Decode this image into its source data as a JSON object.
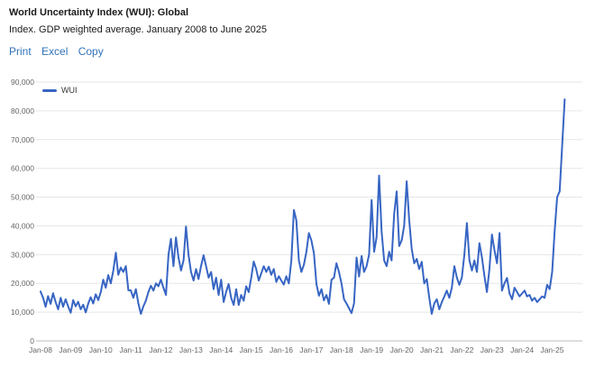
{
  "header": {
    "title": "World Uncertainty Index (WUI): Global",
    "subtitle": "Index. GDP weighted average. January 2008 to June 2025"
  },
  "toolbar": {
    "print_label": "Print",
    "excel_label": "Excel",
    "copy_label": "Copy"
  },
  "colors": {
    "line": "#3765c3",
    "link": "#3273b8",
    "axis_label": "#666666",
    "gridline": "#e6e6e6",
    "zero_line": "#bbbbbb"
  },
  "chart_data": {
    "type": "line",
    "title": "World Uncertainty Index (WUI): Global",
    "xlabel": "",
    "ylabel": "",
    "ylim": [
      0,
      90000
    ],
    "grid": true,
    "x_frequency": "monthly",
    "x_start": "Jan-2008",
    "x_end": "Jun-2025",
    "x_tick_labels": [
      "Jan-08",
      "Jan-09",
      "Jan-10",
      "Jan-11",
      "Jan-12",
      "Jan-13",
      "Jan-14",
      "Jan-15",
      "Jan-16",
      "Jan-17",
      "Jan-18",
      "Jan-19",
      "Jan-20",
      "Jan-21",
      "Jan-22",
      "Jan-23",
      "Jan-24",
      "Jan-25"
    ],
    "y_tick_labels": [
      "0",
      "10,000",
      "20,000",
      "30,000",
      "40,000",
      "50,000",
      "60,000",
      "70,000",
      "80,000",
      "90,000"
    ],
    "legend": {
      "position": "top-left",
      "entries": [
        "WUI"
      ]
    },
    "series": [
      {
        "name": "WUI",
        "color": "#3765c3",
        "values": [
          17200,
          15000,
          11900,
          15600,
          12900,
          16600,
          13500,
          11000,
          15000,
          11900,
          14500,
          12000,
          9800,
          14200,
          12000,
          13600,
          11000,
          12600,
          9900,
          13000,
          15200,
          13000,
          16200,
          14200,
          17000,
          21300,
          18500,
          22900,
          20000,
          24500,
          30700,
          23000,
          25500,
          24000,
          26000,
          17600,
          17600,
          15000,
          18000,
          13000,
          9400,
          12000,
          14000,
          17000,
          19200,
          17500,
          20000,
          19000,
          21300,
          18500,
          16000,
          30000,
          35500,
          26000,
          36000,
          29000,
          24500,
          28000,
          39800,
          30000,
          24000,
          21000,
          25000,
          21500,
          26000,
          29800,
          26000,
          22000,
          24000,
          18000,
          22000,
          16000,
          21300,
          13500,
          17000,
          19800,
          15000,
          12500,
          18000,
          12500,
          16000,
          14000,
          19000,
          17000,
          22000,
          27600,
          25000,
          21000,
          23500,
          26000,
          24000,
          25800,
          23000,
          25000,
          20500,
          22500,
          21000,
          19600,
          22500,
          20000,
          28000,
          45500,
          42000,
          28000,
          24000,
          26500,
          31000,
          37500,
          35000,
          30500,
          19800,
          15700,
          18000,
          14100,
          16000,
          12900,
          21300,
          22000,
          27000,
          24000,
          20000,
          14500,
          13000,
          11400,
          9700,
          13000,
          29000,
          22400,
          29500,
          24000,
          26000,
          30000,
          49000,
          31000,
          36000,
          57500,
          38000,
          28000,
          26000,
          31000,
          28000,
          44000,
          52000,
          33000,
          35000,
          40000,
          55500,
          42000,
          32000,
          27000,
          28500,
          25000,
          27500,
          20000,
          21500,
          15000,
          9400,
          13000,
          14500,
          11000,
          13500,
          15500,
          17500,
          15000,
          18500,
          26000,
          22000,
          19500,
          22000,
          30000,
          41000,
          28000,
          24500,
          28000,
          24000,
          34000,
          29000,
          22500,
          17000,
          25000,
          37000,
          31500,
          27000,
          37500,
          17500,
          20000,
          21900,
          16500,
          14500,
          18500,
          17000,
          15500,
          16500,
          17500,
          15500,
          16000,
          14000,
          15000,
          13500,
          14500,
          15500,
          15000,
          19500,
          18000,
          24000,
          38000,
          50000,
          52000,
          68000,
          84000
        ]
      }
    ]
  }
}
